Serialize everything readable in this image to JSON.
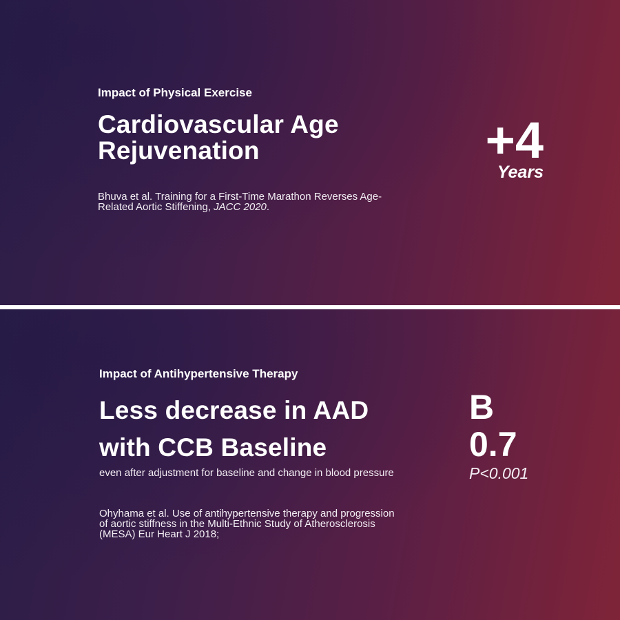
{
  "exercise": {
    "kicker": "Impact of Physical Exercise",
    "title_line1": "Cardiovascular Age",
    "title_line2": "Rejuvenation",
    "citation_line1": "Bhuva et al. Training for a First-Time Marathon Reverses Age-",
    "citation_line2_text": "Related Aortic Stiffening, ",
    "citation_journal": "JACC 2020",
    "citation_end": ".",
    "stat_value": "+4",
    "stat_unit": "Years"
  },
  "therapy": {
    "kicker": "Impact of Antihypertensive Therapy",
    "title_line1": "Less decrease in AAD",
    "title_line2": "with CCB Baseline",
    "subtitle": "even after adjustment for baseline and change in blood pressure",
    "citation_line1": "Ohyhama et al. Use of antihypertensive therapy and progression",
    "citation_line2": "of aortic stiffness in the Multi-Ethnic Study of Atherosclerosis",
    "citation_line3": "(MESA) Eur Heart J 2018;",
    "stat_label": "B",
    "stat_value": "0.7",
    "stat_p": "P<0.001"
  },
  "colors": {
    "gradient_left": "#2a1d47",
    "gradient_right": "#7f2438",
    "divider": "#ffffff",
    "text": "#ffffff"
  }
}
